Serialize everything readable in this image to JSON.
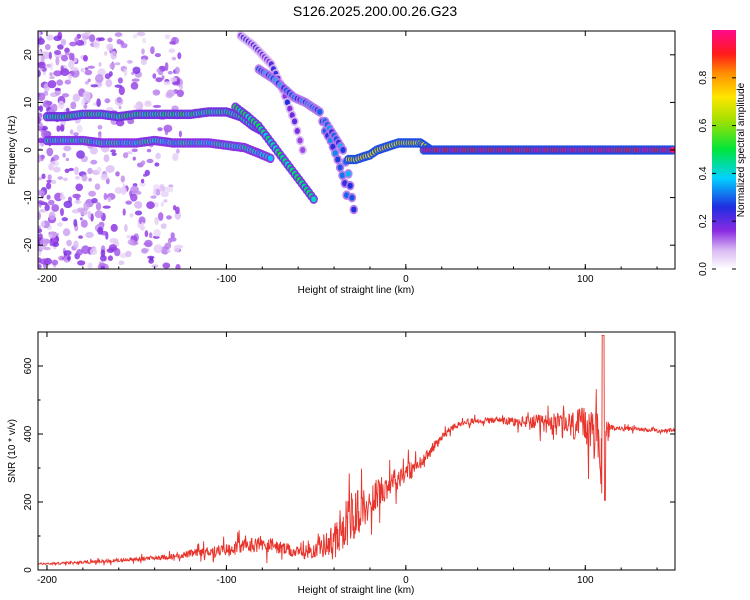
{
  "figure_title": "S126.2025.200.00.26.G23",
  "chart_data": [
    {
      "type": "heatmap",
      "panel": "spectrogram",
      "xlabel": "Height of straight line (km)",
      "ylabel": "Frequency (Hz)",
      "xlim": [
        -205,
        150
      ],
      "ylim": [
        -25,
        25
      ],
      "xticks": [
        -200,
        -100,
        0,
        100
      ],
      "xtick_labels": [
        "-200",
        "-100",
        "0",
        "100"
      ],
      "yticks": [
        -20,
        -10,
        0,
        10,
        20
      ],
      "ytick_labels": [
        "-20",
        "-10",
        "0",
        "10",
        "20"
      ],
      "colorbar": {
        "label": "Normalized spectral amplitude",
        "range": [
          0,
          1
        ],
        "ticks": [
          0,
          0.2,
          0.4,
          0.6,
          0.8
        ],
        "tick_labels": [
          "0.0",
          "0.2",
          "0.4",
          "0.6",
          "0.8"
        ],
        "colormap": "rainbow (white-violet-blue-cyan-green-yellow-orange-red-magenta)"
      },
      "tracks": [
        {
          "x": [
            -200,
            -190,
            -180,
            -170,
            -160,
            -150,
            -140,
            -130,
            -120,
            -110,
            -100,
            -92,
            -85,
            -80
          ],
          "y": [
            7,
            7,
            7.5,
            7.5,
            7,
            7.5,
            7.5,
            7.5,
            7.5,
            8,
            8,
            7,
            5,
            4
          ],
          "amplitude": 0.45
        },
        {
          "x": [
            -200,
            -190,
            -180,
            -170,
            -160,
            -150,
            -140,
            -130,
            -120,
            -110,
            -100,
            -90,
            -80,
            -74
          ],
          "y": [
            2,
            2,
            2,
            1.5,
            1.5,
            1.5,
            2,
            1.5,
            1.5,
            1.5,
            1,
            0.5,
            -1,
            -2
          ],
          "amplitude": 0.4
        },
        {
          "x": [
            -95,
            -88,
            -82,
            -78,
            -74,
            -70,
            -66,
            -62,
            -58,
            -54,
            -50
          ],
          "y": [
            9,
            7,
            5,
            3,
            1,
            -1,
            -3,
            -5,
            -7,
            -9,
            -11
          ],
          "amplitude": 0.45
        },
        {
          "x": [
            -92,
            -85,
            -80,
            -75,
            -70,
            -66,
            -62,
            -59,
            -56
          ],
          "y": [
            24,
            22,
            20,
            18,
            14,
            10,
            6,
            2,
            -2
          ],
          "amplitude": 0.2
        },
        {
          "x": [
            -82,
            -74,
            -68,
            -62,
            -56,
            -52,
            -48,
            -45,
            -42,
            -38,
            -34,
            -32
          ],
          "y": [
            17,
            15,
            13,
            11,
            10,
            9,
            8,
            4,
            2,
            -2,
            -7,
            -12
          ],
          "amplitude": 0.3
        },
        {
          "x": [
            -45,
            -40,
            -35,
            -32,
            -30,
            -28
          ],
          "y": [
            6,
            3,
            0,
            -5,
            -10,
            -15
          ],
          "amplitude": 0.3
        },
        {
          "x": [
            -32,
            -28,
            -24,
            -20,
            -16,
            -12,
            -8,
            -4,
            0,
            4,
            8,
            10,
            14
          ],
          "y": [
            -2,
            -2,
            -1.5,
            -1,
            0,
            0.5,
            1,
            1.5,
            1.5,
            1.5,
            1.5,
            1,
            0
          ],
          "amplitude": 0.7
        },
        {
          "x": [
            10,
            20,
            30,
            40,
            50,
            60,
            70,
            80,
            90,
            100,
            110,
            120,
            130,
            140,
            150
          ],
          "y": [
            0,
            0,
            0,
            0,
            0,
            0,
            0,
            0,
            0,
            0,
            0,
            0,
            0,
            0,
            0
          ],
          "amplitude": 0.95
        }
      ]
    },
    {
      "type": "line",
      "panel": "snr",
      "xlabel": "Height of straight line (km)",
      "ylabel": "SNR (10 * v/v)",
      "xlim": [
        -205,
        150
      ],
      "ylim": [
        0,
        700
      ],
      "xticks": [
        -200,
        -100,
        0,
        100
      ],
      "xtick_labels": [
        "-200",
        "-100",
        "0",
        "100"
      ],
      "yticks": [
        0,
        200,
        400,
        600
      ],
      "ytick_labels": [
        "0",
        "200",
        "400",
        "600"
      ],
      "color": "#e8332b",
      "x": [
        -205,
        -190,
        -170,
        -150,
        -130,
        -110,
        -100,
        -90,
        -80,
        -70,
        -60,
        -50,
        -40,
        -35,
        -30,
        -25,
        -20,
        -15,
        -10,
        -5,
        0,
        5,
        10,
        15,
        20,
        25,
        30,
        40,
        50,
        60,
        70,
        80,
        90,
        100,
        105,
        108,
        110,
        112,
        115,
        120,
        130,
        140,
        150
      ],
      "y": [
        18,
        20,
        25,
        32,
        40,
        55,
        60,
        70,
        80,
        65,
        50,
        60,
        90,
        130,
        160,
        175,
        200,
        230,
        250,
        270,
        290,
        300,
        320,
        360,
        390,
        415,
        430,
        440,
        440,
        435,
        435,
        430,
        425,
        420,
        400,
        380,
        250,
        420,
        420,
        415,
        415,
        410,
        410
      ],
      "noise": [
        3,
        4,
        5,
        6,
        8,
        15,
        18,
        22,
        25,
        20,
        18,
        25,
        50,
        70,
        80,
        60,
        50,
        45,
        40,
        35,
        30,
        25,
        20,
        15,
        12,
        10,
        8,
        8,
        10,
        15,
        20,
        30,
        40,
        60,
        80,
        90,
        90,
        20,
        8,
        6,
        6,
        6,
        6
      ]
    }
  ]
}
